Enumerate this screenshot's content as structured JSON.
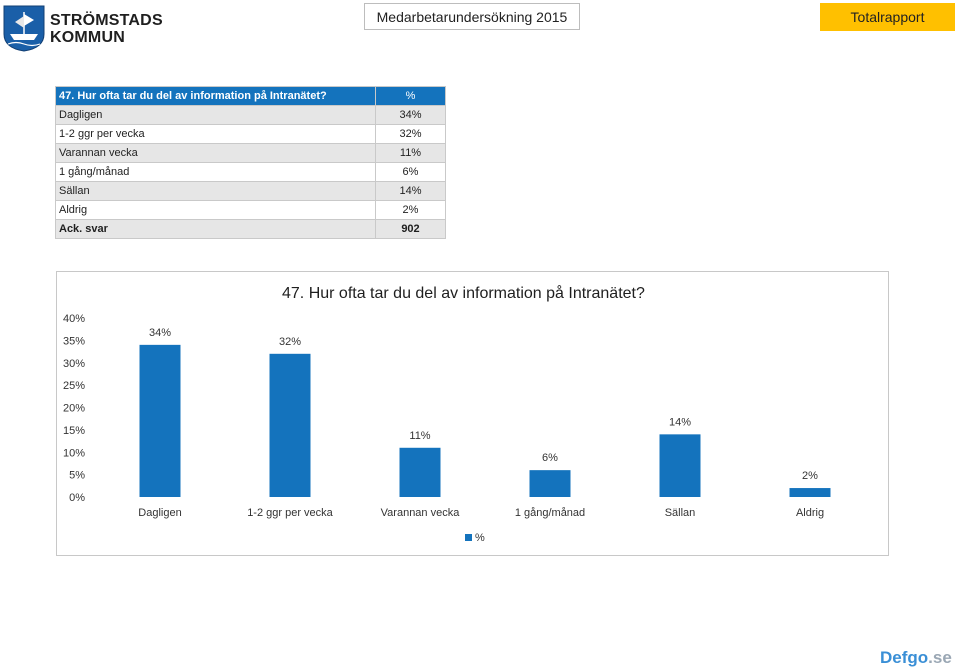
{
  "header": {
    "org_name_line1": "STRÖMSTADS",
    "org_name_line2": "KOMMUN",
    "survey_title": "Medarbetarundersökning 2015",
    "report_button": "Totalrapport"
  },
  "table": {
    "question": "47. Hur ofta tar du del av information på Intranätet?",
    "unit_header": "%",
    "rows": [
      {
        "label": "Dagligen",
        "value": "34%"
      },
      {
        "label": "1-2 ggr per vecka",
        "value": "32%"
      },
      {
        "label": "Varannan vecka",
        "value": "11%"
      },
      {
        "label": "1 gång/månad",
        "value": "6%"
      },
      {
        "label": "Sällan",
        "value": "14%"
      },
      {
        "label": "Aldrig",
        "value": "2%"
      }
    ],
    "footer_label": "Ack. svar",
    "footer_value": "902"
  },
  "chart_data": {
    "type": "bar",
    "title": "47. Hur ofta tar du del av information på Intranätet?",
    "categories": [
      "Dagligen",
      "1-2 ggr per vecka",
      "Varannan vecka",
      "1 gång/månad",
      "Sällan",
      "Aldrig"
    ],
    "series": [
      {
        "name": "%",
        "values": [
          34,
          32,
          11,
          6,
          14,
          2
        ]
      }
    ],
    "data_labels": [
      "34%",
      "32%",
      "11%",
      "6%",
      "14%",
      "2%"
    ],
    "y_ticks": [
      "0%",
      "5%",
      "10%",
      "15%",
      "20%",
      "25%",
      "30%",
      "35%",
      "40%"
    ],
    "ylim": [
      0,
      40
    ],
    "legend_position": "bottom",
    "grid": false,
    "bar_color": "#1473bd"
  },
  "watermark": {
    "main": "Defgo",
    "suffix": ".se"
  }
}
